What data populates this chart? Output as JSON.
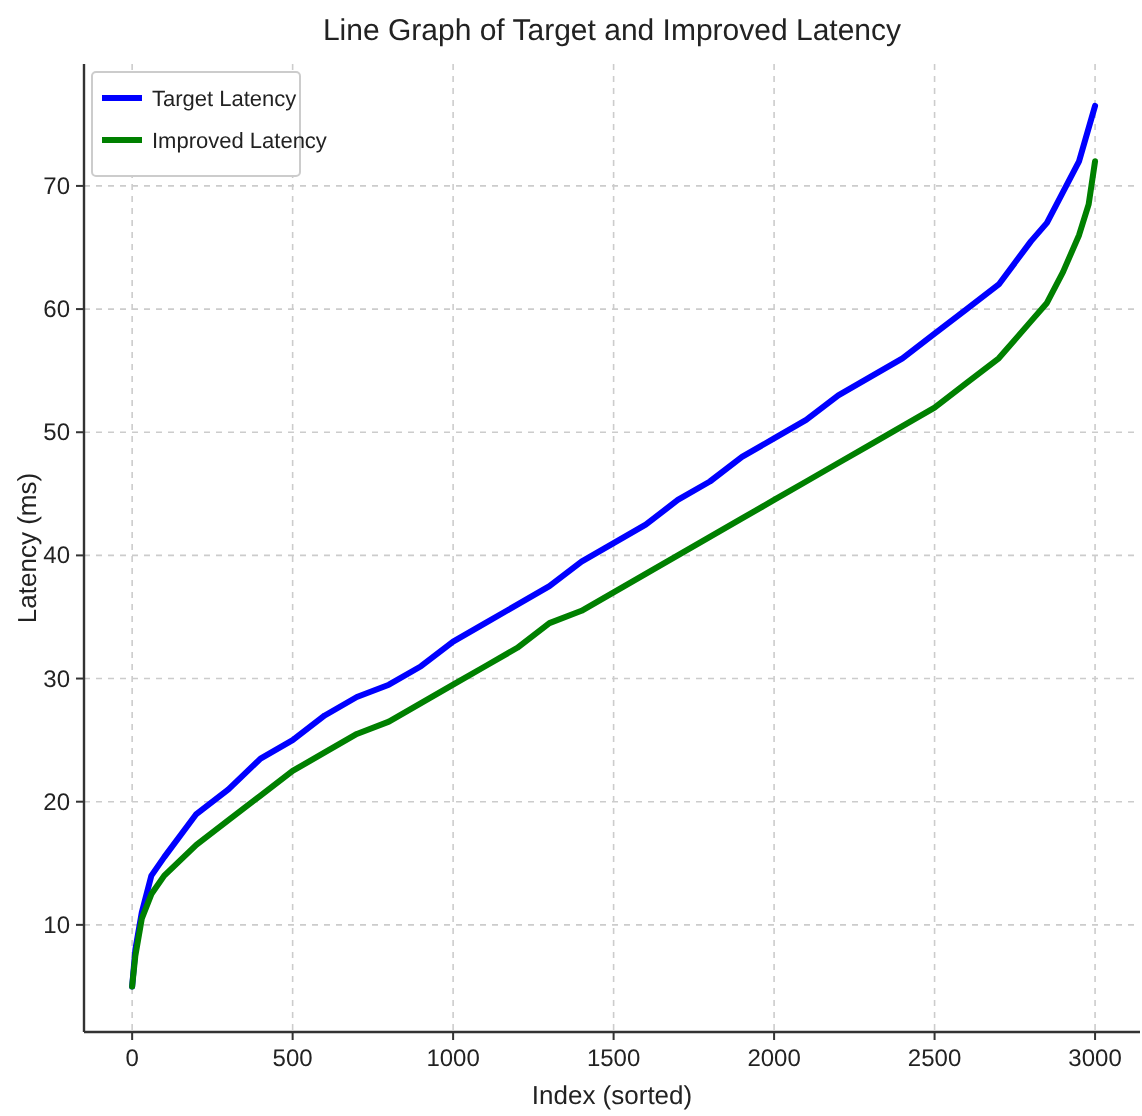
{
  "chart_data": {
    "type": "line",
    "title": "Line Graph of Target and Improved Latency",
    "xlabel": "Index (sorted)",
    "ylabel": "Latency (ms)",
    "xlim": [
      -150,
      3140
    ],
    "xticks": [
      0,
      500,
      1000,
      1500,
      2000,
      2500,
      3000
    ],
    "ylim": [
      1.3,
      79.9
    ],
    "yticks": [
      10,
      20,
      30,
      40,
      50,
      60,
      70
    ],
    "grid": true,
    "legend": "top left",
    "line_style": "solid",
    "marker": "none",
    "series": [
      {
        "name": "Target Latency",
        "color": "#0000ff",
        "x": [
          0,
          10,
          30,
          60,
          100,
          200,
          300,
          400,
          500,
          600,
          700,
          800,
          900,
          1000,
          1100,
          1200,
          1300,
          1400,
          1500,
          1600,
          1700,
          1800,
          1900,
          2000,
          2100,
          2200,
          2300,
          2400,
          2500,
          2600,
          2700,
          2800,
          2850,
          2900,
          2950,
          3000
        ],
        "values": [
          5,
          8,
          11,
          14,
          15.5,
          19,
          21,
          23.5,
          25,
          27,
          28.5,
          29.5,
          31,
          33,
          34.5,
          36,
          37.5,
          39.5,
          41,
          42.5,
          44.5,
          46,
          48,
          49.5,
          51,
          53,
          54.5,
          56,
          58,
          60,
          62,
          65.5,
          67,
          69.5,
          72,
          76.5
        ]
      },
      {
        "name": "Improved Latency",
        "color": "#008000",
        "x": [
          0,
          10,
          30,
          60,
          100,
          200,
          300,
          400,
          500,
          600,
          700,
          800,
          900,
          1000,
          1100,
          1200,
          1300,
          1400,
          1500,
          1600,
          1700,
          1800,
          1900,
          2000,
          2100,
          2200,
          2300,
          2400,
          2500,
          2600,
          2700,
          2800,
          2850,
          2900,
          2950,
          2980,
          3000
        ],
        "values": [
          5,
          7.5,
          10.5,
          12.5,
          14,
          16.5,
          18.5,
          20.5,
          22.5,
          24,
          25.5,
          26.5,
          28,
          29.5,
          31,
          32.5,
          34.5,
          35.5,
          37,
          38.5,
          40,
          41.5,
          43,
          44.5,
          46,
          47.5,
          49,
          50.5,
          52,
          54,
          56,
          59,
          60.5,
          63,
          66,
          68.5,
          72
        ]
      }
    ]
  }
}
